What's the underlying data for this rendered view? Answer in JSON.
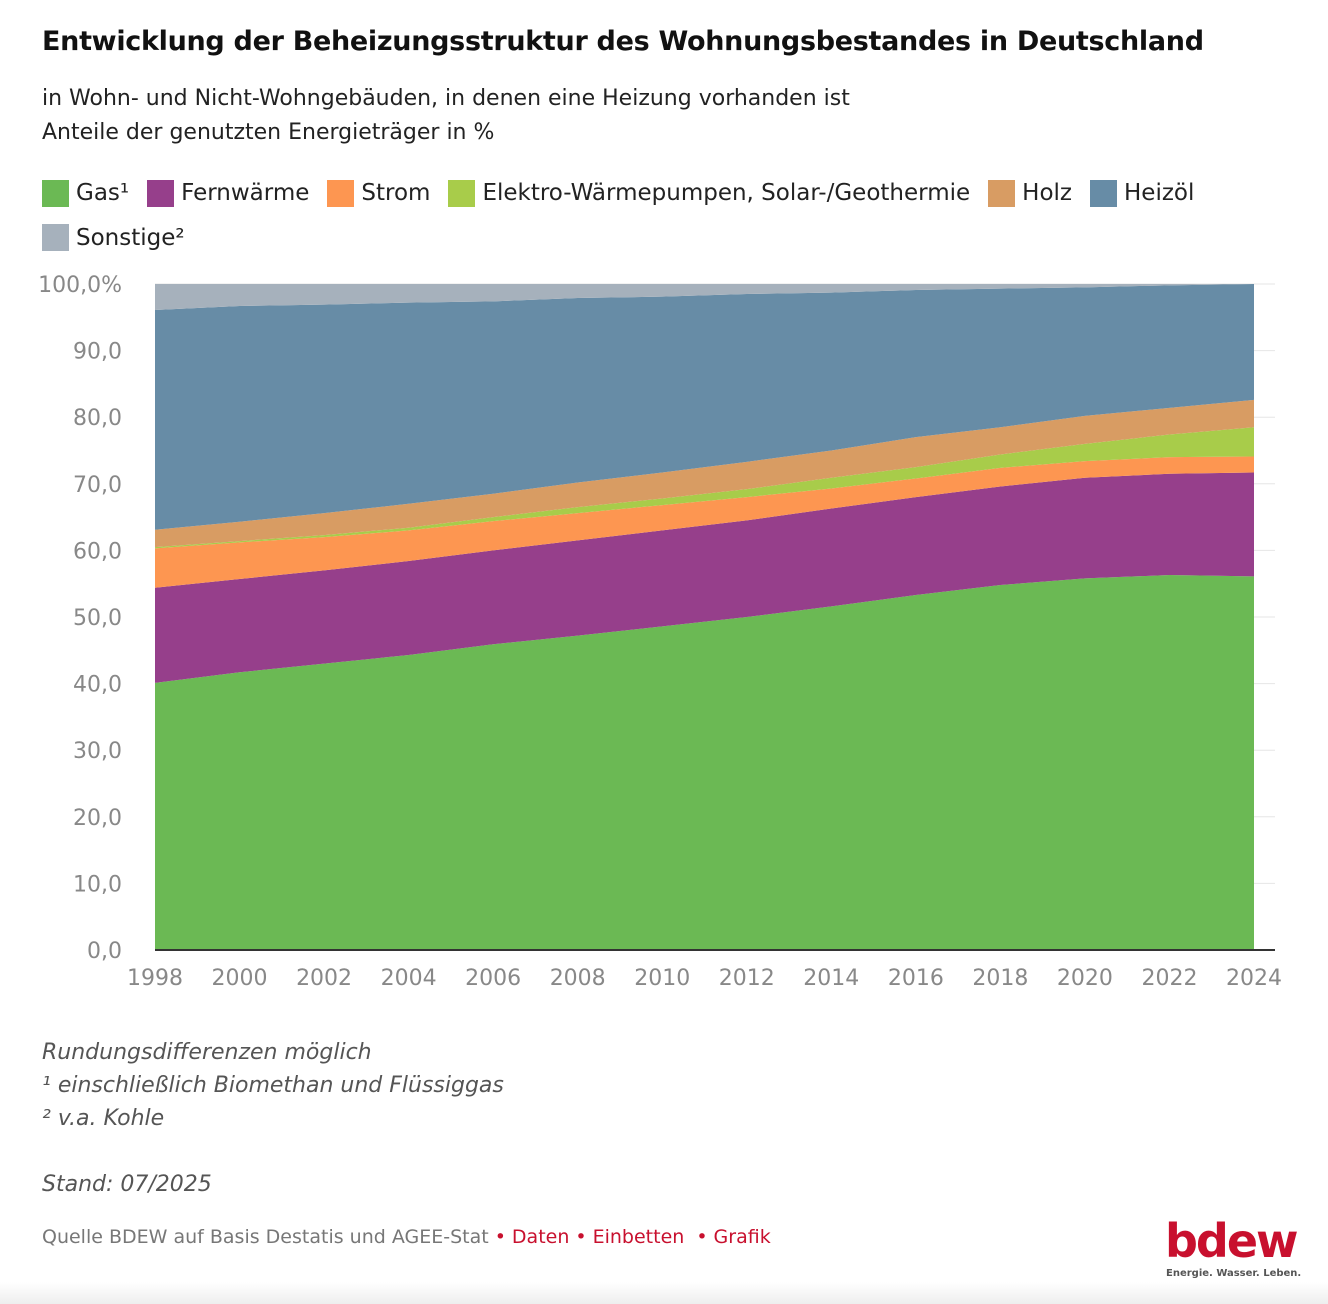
{
  "title": "Entwicklung der Beheizungsstruktur des Wohnungsbestandes in Deutschland",
  "subtitle1": "in Wohn- und Nicht-Wohngebäuden, in denen eine Heizung vorhanden ist",
  "subtitle2": "Anteile der genutzten Energieträger in %",
  "chart_data": {
    "type": "area",
    "stacked": true,
    "x": [
      1998,
      2000,
      2002,
      2004,
      2006,
      2008,
      2010,
      2012,
      2014,
      2016,
      2018,
      2020,
      2022,
      2024
    ],
    "xticks": [
      "1998",
      "2000",
      "2002",
      "2004",
      "2006",
      "2008",
      "2010",
      "2012",
      "2014",
      "2016",
      "2018",
      "2020",
      "2022",
      "2024"
    ],
    "yticks": [
      "0,0",
      "10,0",
      "20,0",
      "30,0",
      "40,0",
      "50,0",
      "60,0",
      "70,0",
      "80,0",
      "90,0",
      "100,0%"
    ],
    "ylim": [
      0,
      100
    ],
    "grid": true,
    "legend": "top",
    "series": [
      {
        "name": "Gas¹",
        "color": "#6bb954",
        "values": [
          40.1,
          41.7,
          43.0,
          44.3,
          45.9,
          47.2,
          48.6,
          50.0,
          51.6,
          53.3,
          54.8,
          55.8,
          56.3,
          56.1
        ]
      },
      {
        "name": "Fernwärme",
        "color": "#963f8b",
        "values": [
          14.3,
          14.0,
          14.0,
          14.1,
          14.1,
          14.3,
          14.4,
          14.5,
          14.7,
          14.7,
          14.8,
          15.1,
          15.2,
          15.6
        ]
      },
      {
        "name": "Strom",
        "color": "#fd9651",
        "values": [
          5.9,
          5.5,
          5.0,
          4.6,
          4.4,
          4.1,
          3.8,
          3.5,
          3.0,
          2.8,
          2.8,
          2.5,
          2.5,
          2.4
        ]
      },
      {
        "name": "Elektro-Wärmepumpen, Solar-/Geothermie",
        "color": "#a8cc4a",
        "values": [
          0.2,
          0.2,
          0.3,
          0.4,
          0.6,
          0.9,
          1.0,
          1.2,
          1.6,
          1.7,
          2.0,
          2.6,
          3.4,
          4.4
        ]
      },
      {
        "name": "Holz",
        "color": "#d89c63",
        "values": [
          2.6,
          2.9,
          3.3,
          3.6,
          3.5,
          3.7,
          3.9,
          4.1,
          4.1,
          4.5,
          4.1,
          4.2,
          4.0,
          4.1
        ]
      },
      {
        "name": "Heizöl",
        "color": "#678ca6",
        "values": [
          33.0,
          32.4,
          31.3,
          30.2,
          28.9,
          27.7,
          26.4,
          25.2,
          23.7,
          22.1,
          20.8,
          19.3,
          18.4,
          17.4
        ]
      },
      {
        "name": "Sonstige²",
        "color": "#a6b1bc",
        "values": [
          3.9,
          3.3,
          3.1,
          2.8,
          2.6,
          2.1,
          1.9,
          1.5,
          1.3,
          0.9,
          0.7,
          0.5,
          0.2,
          0.0
        ]
      }
    ]
  },
  "notes": [
    "Rundungsdifferenzen möglich",
    "¹ einschließlich Biomethan und Flüssiggas",
    "² v.a. Kohle"
  ],
  "stand": "Stand: 07/2025",
  "source": "Quelle BDEW auf Basis Destatis und AGEE-Stat",
  "links": {
    "data": "Daten",
    "embed": "Einbetten",
    "graphic": "Grafik"
  },
  "logo": {
    "text": "bdew",
    "tagline": "Energie. Wasser. Leben."
  }
}
